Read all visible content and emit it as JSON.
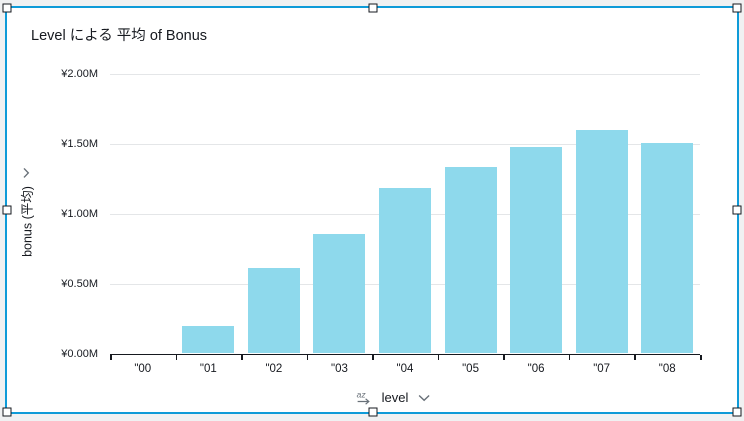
{
  "widget": {
    "title": "Level による 平均 of Bonus",
    "selection_color": "#0f9bd8"
  },
  "x_axis": {
    "label": "level",
    "sort_icon": "az-sort-icon",
    "dropdown_icon": "chevron-down-icon"
  },
  "y_axis": {
    "label": "bonus (平均)",
    "dropdown_icon": "chevron-down-icon"
  },
  "chart_data": {
    "type": "bar",
    "title": "Level による 平均 of Bonus",
    "categories": [
      "\"00",
      "\"01",
      "\"02",
      "\"03",
      "\"04",
      "\"05",
      "\"06",
      "\"07",
      "\"08"
    ],
    "values": [
      0,
      0.19,
      0.61,
      0.85,
      1.18,
      1.33,
      1.47,
      1.59,
      1.5
    ],
    "value_unit": "millions of yen",
    "xlabel": "level",
    "ylabel": "bonus (平均)",
    "ylim": [
      0,
      2.0
    ],
    "y_tick_labels": [
      "¥2.00M",
      "¥1.50M",
      "¥1.00M",
      "¥0.50M",
      "¥0.00M"
    ],
    "y_tick_values": [
      2.0,
      1.5,
      1.0,
      0.5,
      0.0
    ],
    "bar_color": "#8ed9ec",
    "grid": true,
    "legend": "none"
  }
}
